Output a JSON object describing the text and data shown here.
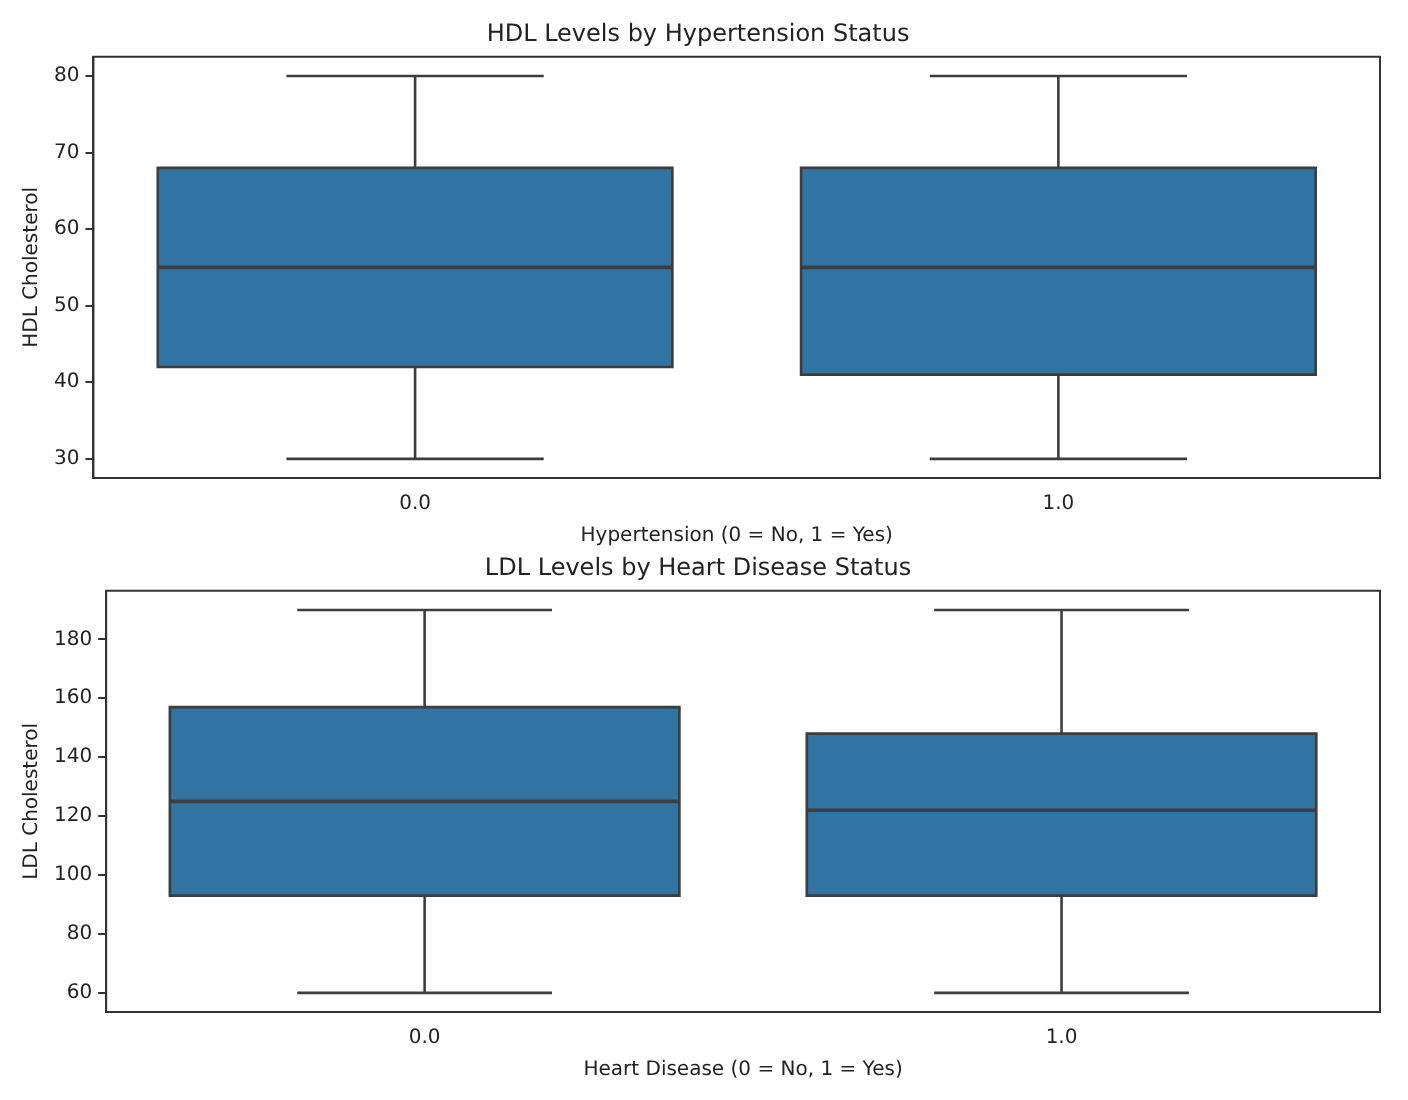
{
  "chart_data": [
    {
      "type": "box",
      "title": "HDL Levels by Hypertension Status",
      "xlabel": "Hypertension (0 = No, 1 = Yes)",
      "ylabel": "HDL Cholesterol",
      "categories": [
        "0.0",
        "1.0"
      ],
      "color": "#3274a1",
      "grid": false,
      "ylim": [
        27.5,
        82.5
      ],
      "yticks": [
        30,
        40,
        50,
        60,
        70,
        80
      ],
      "boxes": [
        {
          "low": 30,
          "q1": 42,
          "median": 55,
          "q3": 68,
          "high": 80
        },
        {
          "low": 30,
          "q1": 41,
          "median": 55,
          "q3": 68,
          "high": 80
        }
      ]
    },
    {
      "type": "box",
      "title": "LDL Levels by Heart Disease Status",
      "xlabel": "Heart Disease (0 = No, 1 = Yes)",
      "ylabel": "LDL Cholesterol",
      "categories": [
        "0.0",
        "1.0"
      ],
      "color": "#3274a1",
      "grid": false,
      "ylim": [
        53.5,
        196.5
      ],
      "yticks": [
        60,
        80,
        100,
        120,
        140,
        160,
        180
      ],
      "boxes": [
        {
          "low": 60,
          "q1": 93,
          "median": 125,
          "q3": 157,
          "high": 190
        },
        {
          "low": 60,
          "q1": 93,
          "median": 122,
          "q3": 148,
          "high": 190
        }
      ]
    }
  ]
}
